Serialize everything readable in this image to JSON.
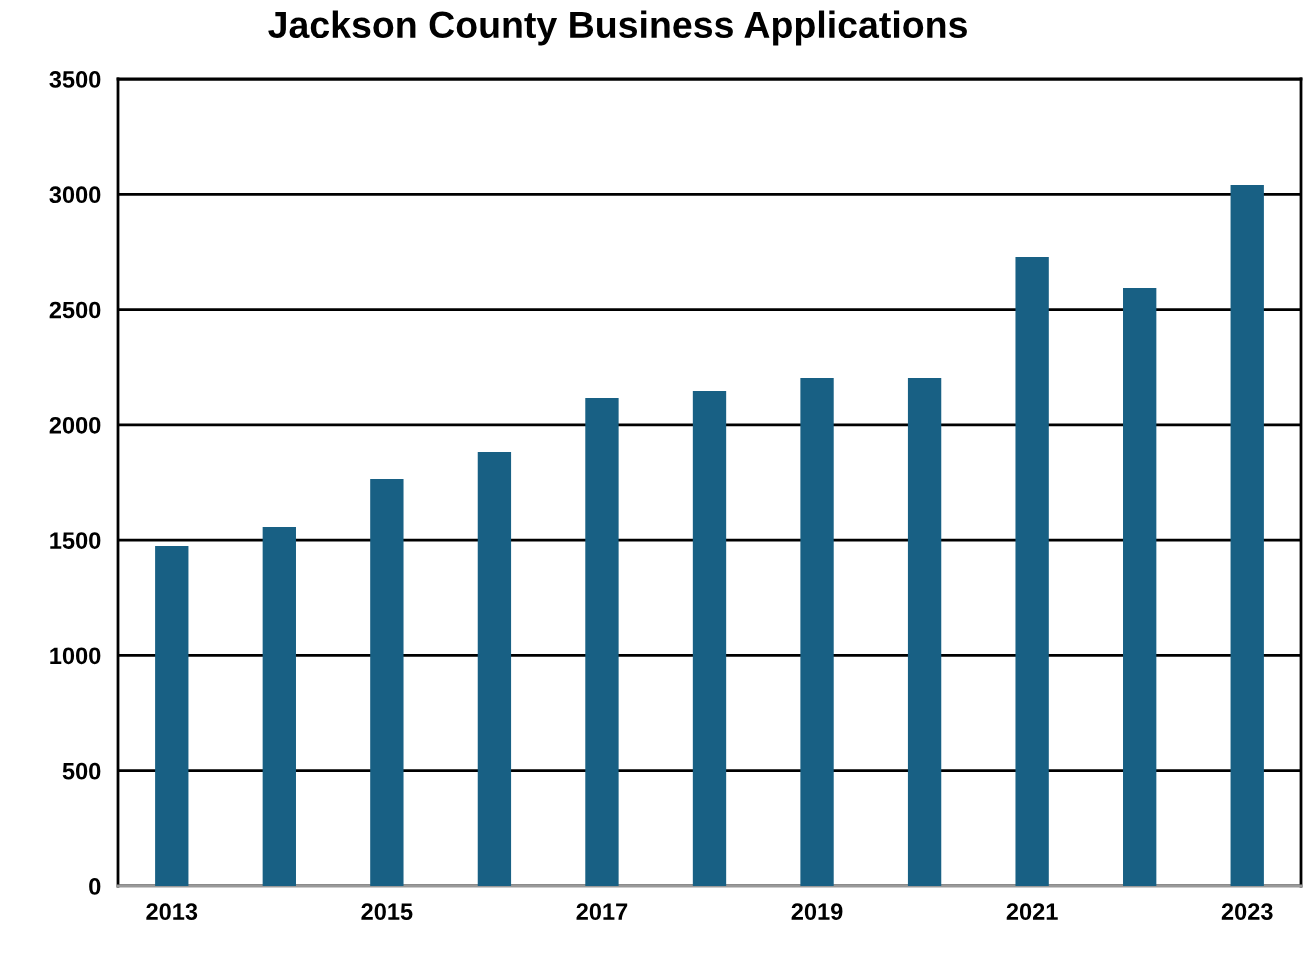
{
  "chart_data": {
    "type": "bar",
    "title": "Jackson County Business Applications",
    "categories": [
      "2013",
      null,
      "2015",
      null,
      "2017",
      null,
      "2019",
      null,
      "2021",
      null,
      "2023"
    ],
    "values": [
      1475,
      1557,
      1765,
      1882,
      2116,
      2147,
      2203,
      2203,
      2728,
      2594,
      3040
    ],
    "color": "#186084",
    "ylim": [
      0,
      3500
    ],
    "yticks": [
      0,
      500,
      1000,
      1500,
      2000,
      2500,
      3000,
      3500
    ],
    "grid": "y",
    "legend": false
  }
}
